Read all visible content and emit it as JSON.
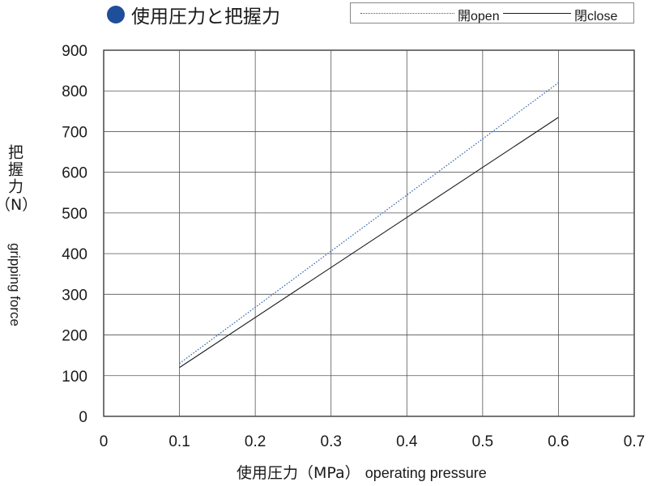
{
  "header": {
    "title": "使用圧力と把握力",
    "bullet_color": "#1f4e9a"
  },
  "legend": {
    "open_label": "開open",
    "close_label": "閉close"
  },
  "axis_labels": {
    "y_jp": "把握力",
    "y_unit": "（N）",
    "y_en": "gripping force",
    "x_jp": "使用圧力（MPa）",
    "x_en": "operating pressure"
  },
  "chart_data": {
    "type": "line",
    "title": "使用圧力と把握力",
    "xlabel": "使用圧力（MPa） operating pressure",
    "ylabel": "把握力（N） gripping force",
    "xlim": [
      0,
      0.7
    ],
    "ylim": [
      0,
      900
    ],
    "x_ticks": [
      0,
      0.1,
      0.2,
      0.3,
      0.4,
      0.5,
      0.6,
      0.7
    ],
    "y_ticks": [
      0,
      100,
      200,
      300,
      400,
      500,
      600,
      700,
      800,
      900
    ],
    "grid": true,
    "legend_position": "top-right",
    "series": [
      {
        "name": "開open",
        "x": [
          0.1,
          0.6
        ],
        "y": [
          130,
          820
        ],
        "style": "dotted",
        "color": "#2a5db0"
      },
      {
        "name": "閉close",
        "x": [
          0.1,
          0.6
        ],
        "y": [
          120,
          735
        ],
        "style": "solid",
        "color": "#1a1a1a"
      }
    ]
  }
}
